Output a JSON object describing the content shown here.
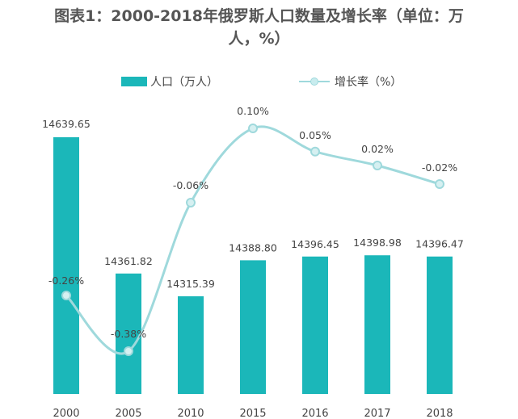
{
  "chart_data": {
    "type": "bar",
    "title_line1": "图表1：2000-2018年俄罗斯人口数量及增长率（单位：万",
    "title_line2": "人，%）",
    "categories": [
      "2000",
      "2005",
      "2010",
      "2015",
      "2016",
      "2017",
      "2018"
    ],
    "series": [
      {
        "name": "人口（万人）",
        "type": "bar",
        "values": [
          14639.65,
          14361.82,
          14315.39,
          14388.8,
          14396.45,
          14398.98,
          14396.47
        ],
        "labels": [
          "14639.65",
          "14361.82",
          "14315.39",
          "14388.80",
          "14396.45",
          "14398.98",
          "14396.47"
        ],
        "color": "#1bb7b9"
      },
      {
        "name": "增长率（%）",
        "type": "line",
        "values": [
          -0.26,
          -0.38,
          -0.06,
          0.1,
          0.05,
          0.02,
          -0.02
        ],
        "labels": [
          "-0.26%",
          "-0.38%",
          "-0.06%",
          "0.10%",
          "0.05%",
          "0.02%",
          "-0.02%"
        ],
        "color": "#9fd9dc"
      }
    ],
    "bar_axis_range": [
      14250,
      14660
    ],
    "line_axis_range": [
      -0.42,
      0.19
    ],
    "legend_position": "top",
    "grid": false
  }
}
